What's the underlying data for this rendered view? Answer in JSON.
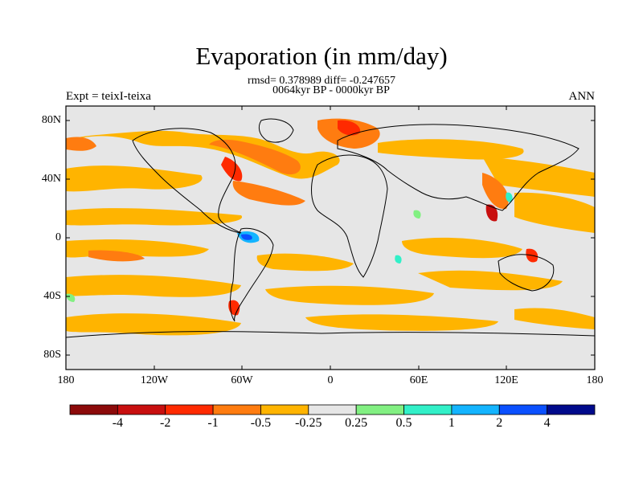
{
  "title": "Evaporation (in mm/day)",
  "stats": "rmsd= 0.378989 diff= -0.247657",
  "period": "0064kyr BP - 0000kyr BP",
  "experiment": "Expt = teixI-teixa",
  "season": "ANN",
  "lat_ticks": [
    "80N",
    "40N",
    "0",
    "40S",
    "80S"
  ],
  "lon_ticks": [
    "180",
    "120W",
    "60W",
    "0",
    "60E",
    "120E",
    "180"
  ],
  "colorbar": {
    "labels": [
      "-4",
      "-2",
      "-1",
      "-0.5",
      "-0.25",
      "0.25",
      "0.5",
      "1",
      "2",
      "4"
    ],
    "colors": [
      "#8c0a0a",
      "#c80f0f",
      "#ff2a00",
      "#ff7c10",
      "#ffb400",
      "#e6e6e6",
      "#82f082",
      "#32f0c8",
      "#14b4ff",
      "#0a50ff",
      "#000a8c"
    ]
  },
  "map_colors": {
    "background": "#e6e6e6",
    "land": "#e6e6e6",
    "coast": "#000000"
  }
}
